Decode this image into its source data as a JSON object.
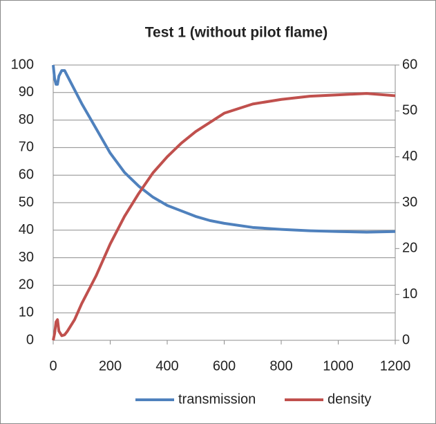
{
  "chart_data": {
    "type": "line",
    "title": "Test 1 (without pilot flame)",
    "x": [
      0,
      5,
      10,
      15,
      20,
      30,
      40,
      50,
      75,
      100,
      150,
      200,
      250,
      300,
      350,
      400,
      450,
      500,
      550,
      600,
      700,
      800,
      900,
      1000,
      1100,
      1200
    ],
    "series": [
      {
        "name": "transmission",
        "color": "#4f81bd",
        "values": [
          100,
          95,
          93,
          93,
          96,
          98,
          98,
          96,
          91,
          86,
          77,
          68,
          61,
          56,
          52,
          49,
          47,
          45,
          43.5,
          42.5,
          41,
          40.3,
          39.8,
          39.5,
          39.3,
          39.5
        ]
      },
      {
        "name": "density",
        "color": "#c0504d",
        "axis": "y2",
        "values": [
          0,
          1.5,
          4,
          4.5,
          2,
          1,
          1.2,
          2,
          4.5,
          8,
          14,
          21,
          27,
          32,
          36.5,
          40,
          43,
          45.5,
          47.5,
          49.5,
          51.5,
          52.5,
          53.2,
          53.5,
          53.8,
          53.3
        ]
      }
    ],
    "xlim": [
      0,
      1200
    ],
    "xticks": [
      0,
      200,
      400,
      600,
      800,
      1000,
      1200
    ],
    "ylim": [
      0,
      100
    ],
    "yticks": [
      0,
      10,
      20,
      30,
      40,
      50,
      60,
      70,
      80,
      90,
      100
    ],
    "y2lim": [
      0,
      60
    ],
    "y2ticks": [
      0,
      10,
      20,
      30,
      40,
      50,
      60
    ],
    "grid": true,
    "legend": "bottom"
  }
}
